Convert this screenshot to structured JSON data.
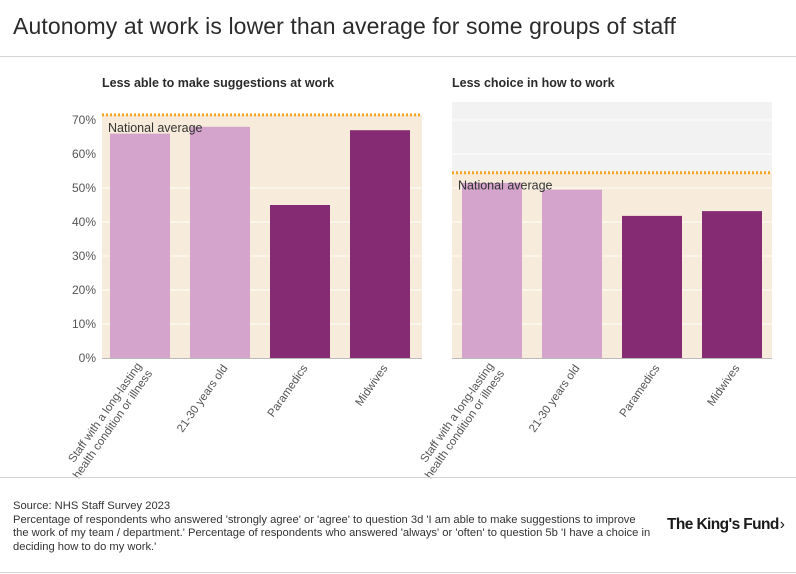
{
  "title": "Autonomy at work is lower than average for some groups of staff",
  "colors": {
    "plot_bg": "#f7ecdb",
    "plot_bg_right": "#f2f2f2",
    "light_bar": "#d4a4cc",
    "dark_bar": "#852b74",
    "national_line": "#f5a623",
    "axis_text": "#555555"
  },
  "chart_data": [
    {
      "type": "bar",
      "title": "Less able to make suggestions at work",
      "categories": [
        "Staff with a long-lasting health condition or illness",
        "21-30 years old",
        "Paramedics",
        "Midwives"
      ],
      "category_lines": [
        [
          "Staff with a long-lasting",
          "health condition or illness"
        ],
        [
          "21-30 years old"
        ],
        [
          "Paramedics"
        ],
        [
          "Midwives"
        ]
      ],
      "values": [
        66,
        68,
        45,
        67
      ],
      "bar_shade": [
        "light",
        "light",
        "dark",
        "dark"
      ],
      "national_average": 71.5,
      "national_average_label": "National average",
      "ylim": [
        0,
        70
      ],
      "yticks": [
        0,
        10,
        20,
        30,
        40,
        50,
        60,
        70
      ],
      "ytick_labels": [
        "0%",
        "10%",
        "20%",
        "30%",
        "40%",
        "50%",
        "60%",
        "70%"
      ],
      "xlabel": "",
      "ylabel": ""
    },
    {
      "type": "bar",
      "title": "Less choice in how to work",
      "categories": [
        "Staff with a long-lasting health condition or illness",
        "21-30 years old",
        "Paramedics",
        "Midwives"
      ],
      "category_lines": [
        [
          "Staff with a long-lasting",
          "health condition or illness"
        ],
        [
          "21-30 years old"
        ],
        [
          "Paramedics"
        ],
        [
          "Midwives"
        ]
      ],
      "values": [
        51.5,
        49.5,
        41.8,
        43.2
      ],
      "bar_shade": [
        "light",
        "light",
        "dark",
        "dark"
      ],
      "national_average": 54.5,
      "national_average_label": "National average",
      "ylim": [
        0,
        70
      ],
      "xlabel": "",
      "ylabel": ""
    }
  ],
  "source": {
    "line1": "Source: NHS Staff Survey 2023",
    "line2": "Percentage of respondents who answered 'strongly agree' or 'agree' to question 3d 'I am able to make suggestions to improve the work of my team / department.' Percentage of respondents who answered 'always' or 'often' to question 5b 'I have a choice in deciding how to do my work.'"
  },
  "logo": {
    "text": "The King's Fund",
    "chevron": "›"
  }
}
